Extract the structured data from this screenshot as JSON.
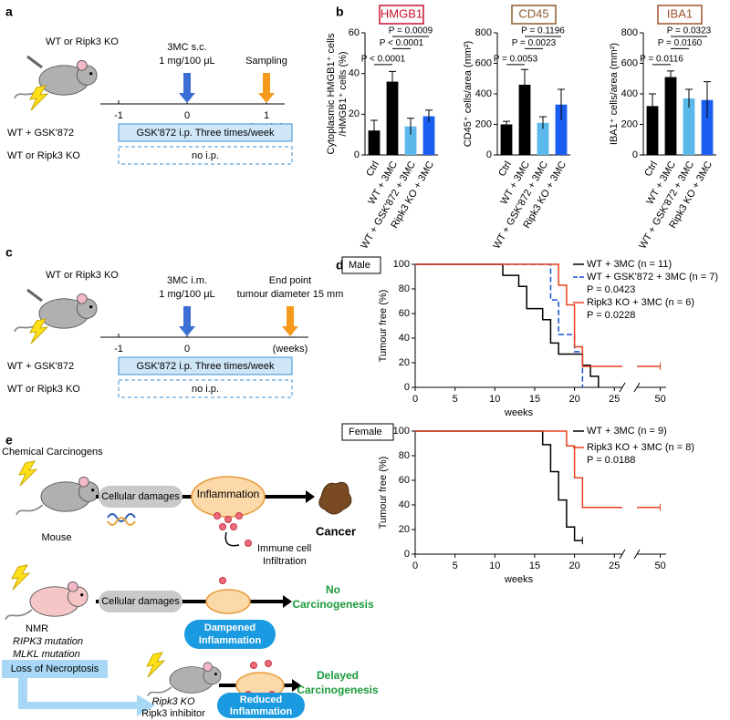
{
  "panel_labels": [
    "a",
    "b",
    "c",
    "d",
    "e"
  ],
  "panel_a": {
    "group": "WT or Ripk3 KO",
    "dose": [
      "3MC s.c.",
      "1 mg/100 μL"
    ],
    "endpoint": [
      "Sampling"
    ],
    "ticks": [
      "-1",
      "0",
      "1"
    ],
    "unit": "(weeks)",
    "rows": [
      [
        "WT + GSK'872",
        "GSK'872 i.p. Three times/week"
      ],
      [
        "WT or Ripk3 KO",
        "no i.p."
      ]
    ]
  },
  "panel_c": {
    "group": "WT or Ripk3 KO",
    "dose": [
      "3MC i.m.",
      "1 mg/100 μL"
    ],
    "endpoint": [
      "End point",
      "tumour diameter 15 mm"
    ],
    "ticks": [
      "-1",
      "0"
    ],
    "unit": "(weeks)",
    "rows": [
      [
        "WT + GSK'872",
        "GSK'872 i.p. Three times/week"
      ],
      [
        "WT or Ripk3 KO",
        "no i.p."
      ]
    ]
  },
  "chart_data": [
    {
      "type": "bar",
      "title": "HMGB1",
      "title_color": "#c8102e",
      "ylabel": [
        "Cytoplasmic HMGB1⁺ cells",
        "/HMGB1⁺ cells (%)"
      ],
      "categories": [
        "Ctrl",
        "WT + 3MC",
        "WT + GSK'872 + 3MC",
        "Ripk3 KO + 3MC"
      ],
      "values": [
        12,
        36,
        14,
        19
      ],
      "errors": [
        5,
        5,
        4,
        3
      ],
      "colors": [
        "#000000",
        "#000000",
        "#5bb8ea",
        "#1a5ef0"
      ],
      "ylim": [
        0,
        60
      ],
      "yticks": [
        0,
        20,
        40,
        60
      ],
      "annotations": [
        "P < 0.0001",
        "P = 0.0009",
        "P < 0.0001"
      ]
    },
    {
      "type": "bar",
      "title": "CD45",
      "title_color": "#8b5a2b",
      "ylabel": [
        "CD45⁺ cells/area (mm²)"
      ],
      "categories": [
        "Ctrl",
        "WT + 3MC",
        "WT + GSK'872 + 3MC",
        "Ripk3 KO + 3MC"
      ],
      "values": [
        200,
        460,
        210,
        330
      ],
      "errors": [
        20,
        100,
        40,
        100
      ],
      "colors": [
        "#000000",
        "#000000",
        "#5bb8ea",
        "#1a5ef0"
      ],
      "ylim": [
        0,
        800
      ],
      "yticks": [
        0,
        200,
        400,
        600,
        800
      ],
      "annotations": [
        "P = 0.0053",
        "P = 0.1196",
        "P = 0.0023"
      ]
    },
    {
      "type": "bar",
      "title": "IBA1",
      "title_color": "#a0522d",
      "ylabel": [
        "IBA1⁺ cells/area (mm²)"
      ],
      "categories": [
        "Ctrl",
        "WT + 3MC",
        "WT + GSK'872 + 3MC",
        "Ripk3 KO + 3MC"
      ],
      "values": [
        320,
        510,
        370,
        360
      ],
      "errors": [
        80,
        40,
        60,
        120
      ],
      "colors": [
        "#000000",
        "#000000",
        "#5bb8ea",
        "#1a5ef0"
      ],
      "ylim": [
        0,
        800
      ],
      "yticks": [
        0,
        200,
        400,
        600,
        800
      ],
      "annotations": [
        "P = 0.0116",
        "P = 0.0323",
        "P = 0.0160"
      ]
    },
    {
      "type": "survival",
      "title": "Male",
      "ylabel": "Tumour free (%)",
      "xlabel": "weeks",
      "xlim": [
        0,
        51
      ],
      "axis_break": [
        26,
        46
      ],
      "xticks": [
        0,
        5,
        10,
        15,
        20,
        25,
        50
      ],
      "ylim": [
        0,
        100
      ],
      "yticks": [
        0,
        20,
        40,
        60,
        80,
        100
      ],
      "series": [
        {
          "name": "WT + 3MC (n = 11)",
          "color": "#000000",
          "dashed": false,
          "x": [
            0,
            11,
            13,
            14,
            16,
            17,
            18,
            21,
            22,
            23
          ],
          "values": [
            100,
            91,
            82,
            64,
            55,
            36,
            27,
            18,
            9,
            0
          ]
        },
        {
          "name": "WT + GSK'872 + 3MC (n = 7)",
          "p": "P = 0.0423",
          "color": "#1a4fd6",
          "dashed": true,
          "x": [
            0,
            17,
            18,
            20,
            21
          ],
          "values": [
            100,
            71,
            43,
            29,
            0
          ]
        },
        {
          "name": "Ripk3 KO + 3MC (n = 6)",
          "p": "P = 0.0228",
          "color": "#e8401c",
          "dashed": false,
          "x": [
            0,
            18,
            19,
            20,
            21,
            50
          ],
          "values": [
            100,
            83,
            67,
            33,
            17,
            17
          ]
        }
      ]
    },
    {
      "type": "survival",
      "title": "Female",
      "ylabel": "Tumour free (%)",
      "xlabel": "weeks",
      "xlim": [
        0,
        51
      ],
      "axis_break": [
        26,
        46
      ],
      "xticks": [
        0,
        5,
        10,
        15,
        20,
        25,
        50
      ],
      "ylim": [
        0,
        100
      ],
      "yticks": [
        0,
        20,
        40,
        60,
        80,
        100
      ],
      "series": [
        {
          "name": "WT + 3MC (n = 9)",
          "color": "#000000",
          "dashed": false,
          "x": [
            0,
            16,
            17,
            18,
            19,
            20,
            21
          ],
          "values": [
            100,
            89,
            67,
            44,
            22,
            11,
            11
          ]
        },
        {
          "name": "Ripk3 KO + 3MC (n = 8)",
          "p": "P = 0.0188",
          "color": "#e8401c",
          "dashed": false,
          "x": [
            0,
            19,
            20,
            21,
            50
          ],
          "values": [
            100,
            88,
            62,
            38,
            38
          ]
        }
      ]
    }
  ],
  "panel_e": {
    "carcinogen": "Chemical Carcinogens",
    "mouse": "Mouse",
    "damage": "Cellular damages",
    "inflammation": "Inflammation",
    "cancer": "Cancer",
    "infiltration": [
      "Immune cell",
      "Infiltration"
    ],
    "nmr": [
      "NMR",
      "RIPK3 mutation",
      "MLKL mutation"
    ],
    "damage2": "Cellular damages",
    "no_carcinogenesis": [
      "No",
      "Carcinogenesis"
    ],
    "dampened": [
      "Dampened",
      "Inflammation"
    ],
    "loss": "Loss of Necroptosis",
    "ko": [
      "Ripk3 KO",
      "Ripk3 inhibitor"
    ],
    "delayed": [
      "Delayed",
      "Carcinogenesis"
    ],
    "reduced": [
      "Reduced",
      "Inflammation"
    ]
  }
}
